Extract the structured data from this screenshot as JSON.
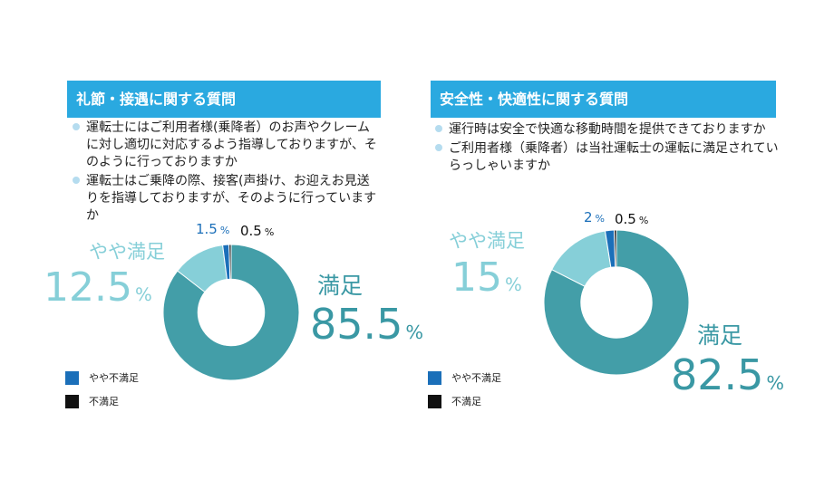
{
  "colors": {
    "header_bg": "#2aa9e0",
    "satisfied": "#439ea8",
    "somewhat_satisfied": "#86cfd8",
    "somewhat_dissatisfied": "#1b6fb9",
    "dissatisfied": "#111111"
  },
  "legend": {
    "somewhat_dissatisfied": "やや不満足",
    "dissatisfied": "不満足"
  },
  "panels": {
    "left": {
      "title": "礼節・接遇に関する質問",
      "questions": [
        "運転士にはご利用者様(乗降者）のお声やクレームに対し適切に対応するよう指導しておりますが、そのように行っておりますか",
        "運転士はご乗降の際、接客(声掛け、お迎えお見送りを指導しておりますが、そのように行っていますか"
      ]
    },
    "right": {
      "title": "安全性・快適性に関する質問",
      "questions": [
        "運行時は安全で快適な移動時間を提供できておりますか",
        "ご利用者様（乗降者）は当社運転士の運転に満足されていらっしゃいますか"
      ]
    }
  },
  "chart_data": [
    {
      "type": "pie",
      "title": "礼節・接遇に関する質問",
      "categories": [
        "満足",
        "やや満足",
        "やや不満足",
        "不満足"
      ],
      "values": [
        85.5,
        12.5,
        1.5,
        0.5
      ],
      "labels": {
        "satisfied_name": "満足",
        "satisfied_value": "85.5",
        "somewhat_name": "やや満足",
        "somewhat_value": "12.5",
        "somewhat_dis_value": "1.5",
        "dis_value": "0.5",
        "unit": "%"
      }
    },
    {
      "type": "pie",
      "title": "安全性・快適性に関する質問",
      "categories": [
        "満足",
        "やや満足",
        "やや不満足",
        "不満足"
      ],
      "values": [
        82.5,
        15,
        2,
        0.5
      ],
      "labels": {
        "satisfied_name": "満足",
        "satisfied_value": "82.5",
        "somewhat_name": "やや満足",
        "somewhat_value": "15",
        "somewhat_dis_value": "2",
        "dis_value": "0.5",
        "unit": "%"
      }
    }
  ]
}
